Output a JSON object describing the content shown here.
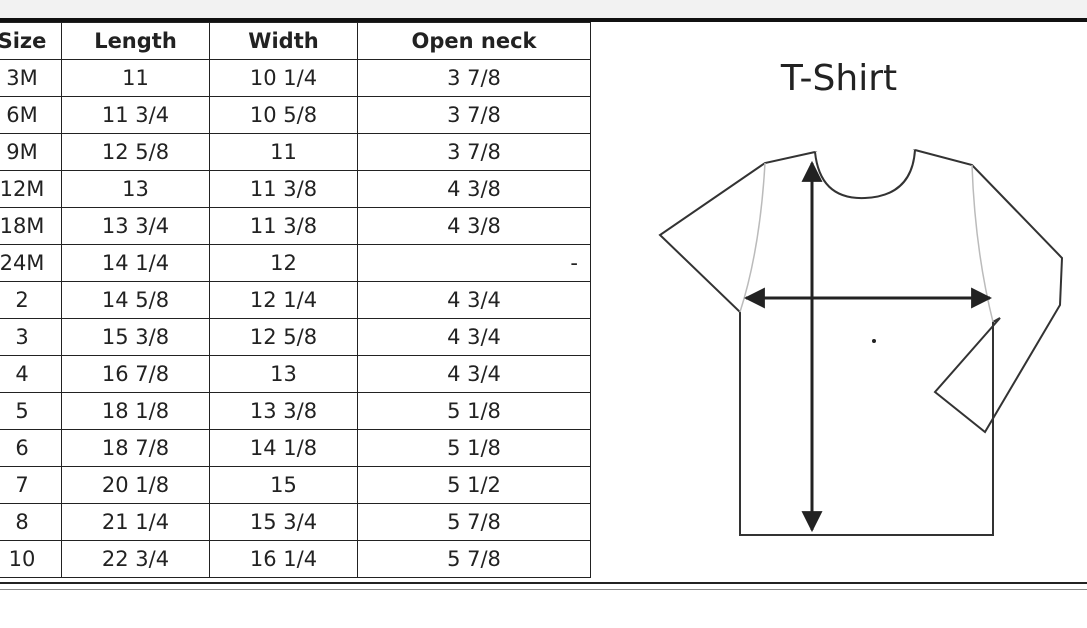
{
  "table": {
    "header": [
      "Size",
      "Length",
      "Width",
      "Open neck"
    ],
    "rows": [
      [
        "3M",
        "11",
        "10 1/4",
        "3 7/8"
      ],
      [
        "6M",
        "11 3/4",
        "10 5/8",
        "3 7/8"
      ],
      [
        "9M",
        "12 5/8",
        "11",
        "3 7/8"
      ],
      [
        "12M",
        "13",
        "11 3/8",
        "4 3/8"
      ],
      [
        "18M",
        "13 3/4",
        "11 3/8",
        "4 3/8"
      ],
      [
        "24M",
        "14 1/4",
        "12",
        "-"
      ],
      [
        "2",
        "14 5/8",
        "12 1/4",
        "4 3/4"
      ],
      [
        "3",
        "15 3/8",
        "12 5/8",
        "4 3/4"
      ],
      [
        "4",
        "16 7/8",
        "13",
        "4 3/4"
      ],
      [
        "5",
        "18 1/8",
        "13 3/8",
        "5 1/8"
      ],
      [
        "6",
        "18 7/8",
        "14 1/8",
        "5 1/8"
      ],
      [
        "7",
        "20 1/8",
        "15",
        "5 1/2"
      ],
      [
        "8",
        "21 1/4",
        "15 3/4",
        "5 7/8"
      ],
      [
        "10",
        "22 3/4",
        "16 1/4",
        "5 7/8"
      ]
    ]
  },
  "diagram": {
    "title": "T-Shirt"
  }
}
